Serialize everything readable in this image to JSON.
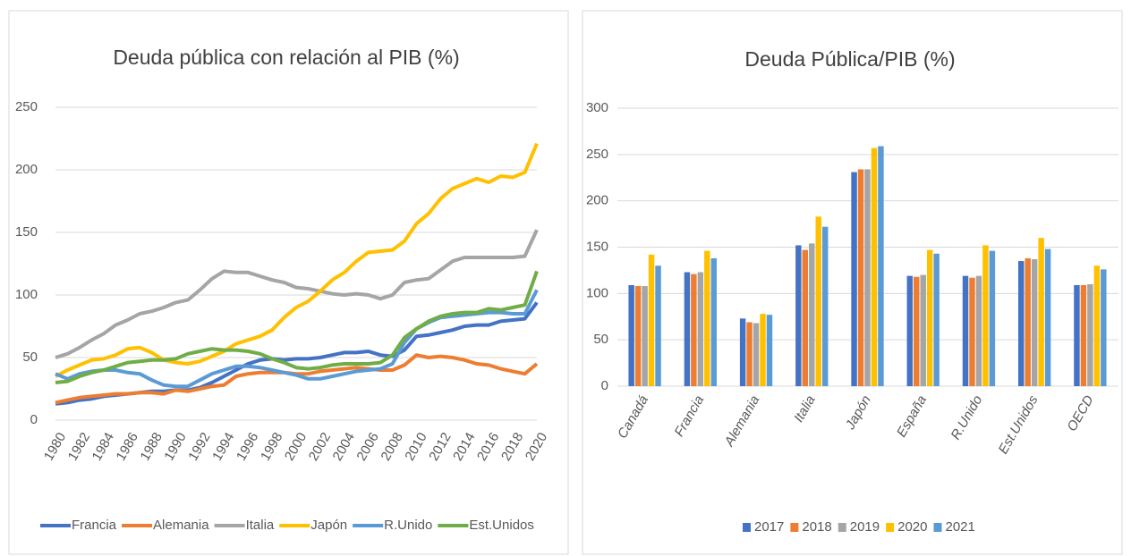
{
  "chart_data": [
    {
      "type": "line",
      "title": "Deuda pública con relación al PIB (%)",
      "x": [
        1980,
        1981,
        1982,
        1983,
        1984,
        1985,
        1986,
        1987,
        1988,
        1989,
        1990,
        1991,
        1992,
        1993,
        1994,
        1995,
        1996,
        1997,
        1998,
        1999,
        2000,
        2001,
        2002,
        2003,
        2004,
        2005,
        2006,
        2007,
        2008,
        2009,
        2010,
        2011,
        2012,
        2013,
        2014,
        2015,
        2016,
        2017,
        2018,
        2019,
        2020
      ],
      "xlim": [
        1980,
        2020
      ],
      "xticks": [
        1980,
        1982,
        1984,
        1986,
        1988,
        1990,
        1992,
        1994,
        1996,
        1998,
        2000,
        2002,
        2004,
        2006,
        2008,
        2010,
        2012,
        2014,
        2016,
        2018,
        2020
      ],
      "ylim": [
        0,
        250
      ],
      "yticks": [
        0,
        50,
        100,
        150,
        200,
        250
      ],
      "grid": true,
      "legend": "bottom",
      "series": [
        {
          "name": "Francia",
          "color": "#4472c4",
          "values": [
            13,
            14,
            16,
            17,
            19,
            20,
            21,
            22,
            23,
            23,
            24,
            24,
            26,
            30,
            35,
            40,
            45,
            48,
            49,
            48,
            49,
            49,
            50,
            52,
            54,
            54,
            55,
            52,
            51,
            56,
            67,
            68,
            70,
            72,
            75,
            76,
            76,
            79,
            80,
            81,
            94
          ]
        },
        {
          "name": "Alemania",
          "color": "#ed7d31",
          "values": [
            14,
            16,
            18,
            19,
            20,
            21,
            21,
            22,
            22,
            21,
            24,
            23,
            25,
            27,
            28,
            35,
            37,
            38,
            38,
            38,
            37,
            37,
            39,
            40,
            41,
            42,
            41,
            40,
            40,
            44,
            52,
            50,
            51,
            50,
            48,
            45,
            44,
            41,
            39,
            37,
            45
          ]
        },
        {
          "name": "Italia",
          "color": "#a5a5a5",
          "values": [
            50,
            53,
            58,
            64,
            69,
            76,
            80,
            85,
            87,
            90,
            94,
            96,
            104,
            113,
            119,
            118,
            118,
            115,
            112,
            110,
            106,
            105,
            103,
            101,
            100,
            101,
            100,
            97,
            100,
            110,
            112,
            113,
            120,
            127,
            130,
            130,
            130,
            130,
            130,
            131,
            152
          ]
        },
        {
          "name": "Japón",
          "color": "#ffc000",
          "values": [
            35,
            40,
            44,
            48,
            49,
            52,
            57,
            58,
            54,
            48,
            46,
            45,
            47,
            51,
            55,
            61,
            64,
            67,
            72,
            82,
            90,
            95,
            103,
            112,
            118,
            127,
            134,
            135,
            136,
            143,
            157,
            165,
            177,
            185,
            189,
            193,
            190,
            195,
            194,
            198,
            221
          ]
        },
        {
          "name": "R.Unido",
          "color": "#5b9bd5",
          "values": [
            37,
            33,
            37,
            39,
            40,
            40,
            38,
            37,
            32,
            28,
            27,
            27,
            32,
            37,
            40,
            43,
            43,
            42,
            40,
            38,
            36,
            33,
            33,
            35,
            37,
            39,
            40,
            41,
            45,
            62,
            73,
            78,
            82,
            83,
            84,
            85,
            86,
            86,
            85,
            85,
            104
          ]
        },
        {
          "name": "Est.Unidos",
          "color": "#70ad47",
          "values": [
            30,
            31,
            35,
            38,
            40,
            43,
            46,
            47,
            48,
            48,
            49,
            53,
            55,
            57,
            56,
            56,
            55,
            53,
            49,
            46,
            42,
            41,
            42,
            44,
            45,
            45,
            45,
            46,
            52,
            66,
            73,
            79,
            83,
            85,
            86,
            86,
            89,
            88,
            90,
            92,
            119
          ]
        }
      ]
    },
    {
      "type": "bar",
      "title": "Deuda Pública/PIB (%)",
      "categories": [
        "Canadá",
        "Francia",
        "Alemania",
        "Italia",
        "Japón",
        "España",
        "R.Unido",
        "Est.Unidos",
        "OECD"
      ],
      "ylim": [
        0,
        300
      ],
      "yticks": [
        0,
        50,
        100,
        150,
        200,
        250,
        300
      ],
      "grid": true,
      "legend": "bottom",
      "series": [
        {
          "name": "2017",
          "color": "#4472c4",
          "values": [
            109,
            123,
            73,
            152,
            231,
            119,
            119,
            135,
            109
          ]
        },
        {
          "name": "2018",
          "color": "#ed7d31",
          "values": [
            108,
            121,
            69,
            147,
            234,
            118,
            117,
            138,
            109
          ]
        },
        {
          "name": "2019",
          "color": "#a5a5a5",
          "values": [
            108,
            123,
            68,
            154,
            234,
            120,
            119,
            137,
            110
          ]
        },
        {
          "name": "2020",
          "color": "#ffc000",
          "values": [
            142,
            146,
            78,
            183,
            257,
            147,
            152,
            160,
            130
          ]
        },
        {
          "name": "2021",
          "color": "#5b9bd5",
          "values": [
            130,
            138,
            77,
            172,
            259,
            143,
            146,
            148,
            126
          ]
        }
      ]
    }
  ]
}
